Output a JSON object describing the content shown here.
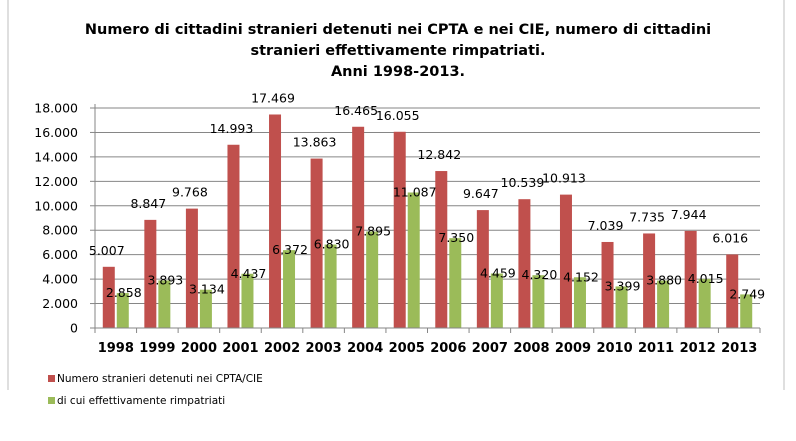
{
  "chart_data": {
    "type": "bar",
    "title": [
      "Numero di cittadini stranieri detenuti nei CPTA e nei CIE, numero di cittadini",
      "stranieri effettivamente rimpatriati.",
      "Anni 1998-2013."
    ],
    "xlabel": "",
    "ylabel": "",
    "ylim": [
      0,
      18000
    ],
    "yticks": [
      0,
      2000,
      4000,
      6000,
      8000,
      10000,
      12000,
      14000,
      16000,
      18000
    ],
    "ytick_labels": [
      "0",
      "2.000",
      "4.000",
      "6.000",
      "8.000",
      "10.000",
      "12.000",
      "14.000",
      "16.000",
      "18.000"
    ],
    "grid": true,
    "legend_position": "bottom-left",
    "categories": [
      "1998",
      "1999",
      "2000",
      "2001",
      "2002",
      "2003",
      "2004",
      "2005",
      "2006",
      "2007",
      "2008",
      "2009",
      "2010",
      "2011",
      "2012",
      "2013"
    ],
    "series": [
      {
        "name": "Numero stranieri detenuti nei CPTA/CIE",
        "color": "#c0504d",
        "values": [
          5007,
          8847,
          9768,
          14993,
          17469,
          13863,
          16465,
          16055,
          12842,
          9647,
          10539,
          10913,
          7039,
          7735,
          7944,
          6016
        ],
        "labels": [
          "5.007",
          "8.847",
          "9.768",
          "14.993",
          "17.469",
          "13.863",
          "16.465",
          "16.055",
          "12.842",
          "9.647",
          "10.539",
          "10.913",
          "7.039",
          "7.735",
          "7.944",
          "6.016"
        ]
      },
      {
        "name": "di cui effettivamente rimpatriati",
        "color": "#9bbb59",
        "values": [
          2858,
          3893,
          3134,
          4437,
          6372,
          6830,
          7895,
          11087,
          7350,
          4459,
          4320,
          4152,
          3399,
          3880,
          4015,
          2749
        ],
        "labels": [
          "2.858",
          "3.893",
          "3.134",
          "4.437",
          "6.372",
          "6.830",
          "7.895",
          "11.087",
          "7.350",
          "4.459",
          "4.320",
          "4.152",
          "3.399",
          "3.880",
          "4.015",
          "2.749"
        ]
      }
    ]
  }
}
